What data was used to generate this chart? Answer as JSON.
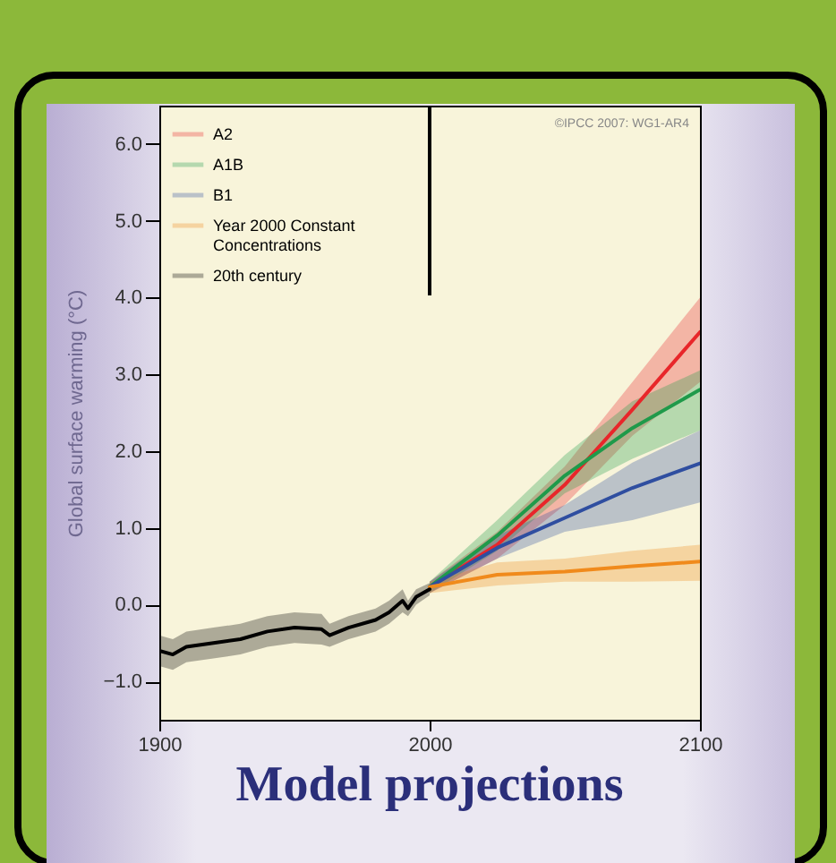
{
  "chart_data": {
    "type": "line",
    "title": "Model projections",
    "ylabel": "Global surface warming (°C)",
    "annotations": [
      "©IPCC 2007: WG1-AR4"
    ],
    "xlim": [
      1900,
      2100
    ],
    "xticks": [
      1900,
      2000,
      2100
    ],
    "ylim": [
      -1.5,
      6.5
    ],
    "yticks": [
      {
        "value": -1,
        "label": "−1.0"
      },
      {
        "value": 0,
        "label": "0.0"
      },
      {
        "value": 1,
        "label": "1.0"
      },
      {
        "value": 2,
        "label": "2.0"
      },
      {
        "value": 3,
        "label": "3.0"
      },
      {
        "value": 4,
        "label": "4.0"
      },
      {
        "value": 5,
        "label": "5.0"
      },
      {
        "value": 6,
        "label": "6.0"
      }
    ],
    "grid": false,
    "legend": "top left",
    "line_style": "solid",
    "ref_lines": [
      {
        "axis": "x",
        "value": 2000,
        "color": "#000000"
      }
    ],
    "series": [
      {
        "name": "A2",
        "color": "#e8262a",
        "x": [
          2000,
          2025,
          2050,
          2075,
          2100
        ],
        "values": [
          0.23,
          0.78,
          1.56,
          2.54,
          3.55
        ],
        "lower": [
          0.15,
          0.6,
          1.3,
          2.2,
          2.9
        ],
        "upper": [
          0.3,
          0.95,
          1.8,
          2.9,
          4.0
        ]
      },
      {
        "name": "A1B",
        "color": "#1f9a4a",
        "x": [
          2000,
          2025,
          2050,
          2075,
          2100
        ],
        "values": [
          0.23,
          0.9,
          1.68,
          2.3,
          2.8
        ],
        "lower": [
          0.15,
          0.7,
          1.45,
          1.9,
          2.27
        ],
        "upper": [
          0.3,
          1.1,
          1.95,
          2.65,
          3.05
        ]
      },
      {
        "name": "B1",
        "color": "#2f4ea0",
        "x": [
          2000,
          2025,
          2050,
          2075,
          2100
        ],
        "values": [
          0.23,
          0.74,
          1.13,
          1.52,
          1.84
        ],
        "lower": [
          0.15,
          0.6,
          0.95,
          1.1,
          1.33
        ],
        "upper": [
          0.3,
          0.9,
          1.3,
          1.85,
          2.27
        ]
      },
      {
        "name": "Year 2000 Constant Concentrations",
        "color": "#f08a1c",
        "x": [
          2000,
          2025,
          2050,
          2075,
          2100
        ],
        "values": [
          0.23,
          0.39,
          0.43,
          0.5,
          0.56
        ],
        "lower": [
          0.15,
          0.25,
          0.3,
          0.3,
          0.31
        ],
        "upper": [
          0.3,
          0.55,
          0.6,
          0.7,
          0.78
        ]
      },
      {
        "name": "20th century",
        "color": "#000000",
        "x": [
          1900,
          1905,
          1910,
          1920,
          1930,
          1940,
          1950,
          1960,
          1963,
          1970,
          1980,
          1985,
          1990,
          1992,
          1995,
          2000
        ],
        "values": [
          -0.6,
          -0.65,
          -0.55,
          -0.5,
          -0.45,
          -0.35,
          -0.3,
          -0.32,
          -0.4,
          -0.3,
          -0.2,
          -0.1,
          0.05,
          -0.05,
          0.1,
          0.2
        ],
        "lower": [
          -0.8,
          -0.85,
          -0.75,
          -0.7,
          -0.65,
          -0.55,
          -0.5,
          -0.52,
          -0.55,
          -0.45,
          -0.35,
          -0.25,
          -0.1,
          -0.15,
          0.0,
          0.12
        ],
        "upper": [
          -0.4,
          -0.45,
          -0.35,
          -0.3,
          -0.25,
          -0.15,
          -0.1,
          -0.12,
          -0.25,
          -0.15,
          -0.05,
          0.05,
          0.2,
          0.05,
          0.2,
          0.28
        ]
      }
    ]
  }
}
